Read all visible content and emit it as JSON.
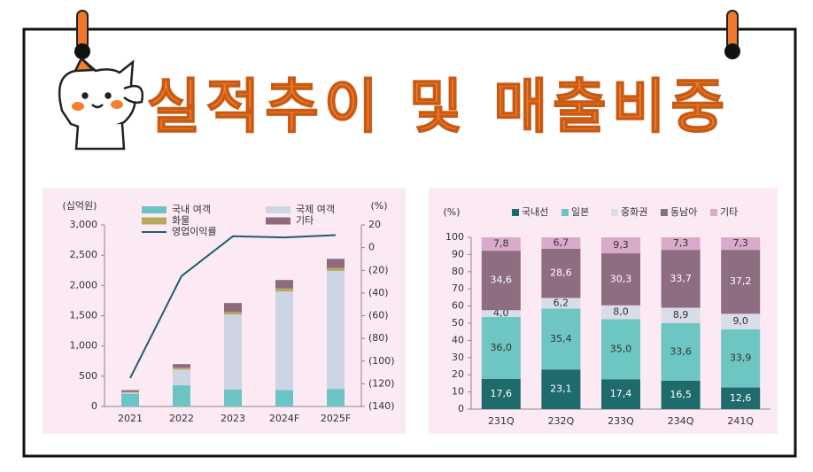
{
  "header": {
    "title": "실적추이 및 매출비중"
  },
  "chart_data": [
    {
      "type": "bar",
      "stacked": true,
      "y_label": "(십억원)",
      "y2_label": "(%)",
      "categories": [
        "2021",
        "2022",
        "2023",
        "2024F",
        "2025F"
      ],
      "series": [
        {
          "name": "국내 여객",
          "color": "#6cc3c3",
          "values": [
            210,
            350,
            280,
            270,
            290
          ]
        },
        {
          "name": "국제 여객",
          "color": "#cdd4e4",
          "values": [
            20,
            260,
            1240,
            1630,
            1950
          ]
        },
        {
          "name": "화물",
          "color": "#b8aa5c",
          "values": [
            10,
            30,
            40,
            50,
            50
          ]
        },
        {
          "name": "기타",
          "color": "#8d6b7c",
          "values": [
            30,
            60,
            150,
            140,
            150
          ]
        },
        {
          "name": "영업이익률",
          "color": "#1f5f6a",
          "type": "line",
          "axis": "y2",
          "values": [
            -115,
            -25,
            10,
            9,
            11
          ]
        }
      ],
      "ylim": [
        0,
        3000
      ],
      "yticks": [
        0,
        500,
        {
          "value": 1000,
          "label": "1,000"
        },
        {
          "value": 1500,
          "label": "1,500"
        },
        {
          "value": 2000,
          "label": "2,000"
        },
        {
          "value": 2500,
          "label": "2,500"
        },
        {
          "value": 3000,
          "label": "3,000"
        }
      ],
      "y2lim": [
        -140,
        20
      ],
      "y2ticks": [
        20,
        0,
        {
          "value": -20,
          "label": "(20)"
        },
        {
          "value": -40,
          "label": "(40)"
        },
        {
          "value": -60,
          "label": "(60)"
        },
        {
          "value": -80,
          "label": "(80)"
        },
        {
          "value": -100,
          "label": "(100)"
        },
        {
          "value": -120,
          "label": "(120)"
        },
        {
          "value": -140,
          "label": "(140)"
        }
      ]
    },
    {
      "type": "bar",
      "stacked": true,
      "y_label": "(%)",
      "categories": [
        "231Q",
        "232Q",
        "233Q",
        "234Q",
        "241Q"
      ],
      "series": [
        {
          "name": "국내선",
          "color": "#1f6b6b",
          "values": [
            17.6,
            23.1,
            17.4,
            16.5,
            12.6
          ],
          "value_labels": [
            "17,6",
            "23,1",
            "17,4",
            "16,5",
            "12,6"
          ]
        },
        {
          "name": "일본",
          "color": "#6dc6c1",
          "values": [
            36.0,
            35.4,
            35.0,
            33.6,
            33.9
          ],
          "value_labels": [
            "36,0",
            "35,4",
            "35,0",
            "33,6",
            "33,9"
          ]
        },
        {
          "name": "중화권",
          "color": "#d9dde9",
          "values": [
            4.0,
            6.2,
            8.0,
            8.9,
            9.0
          ],
          "value_labels": [
            "4,0",
            "6,2",
            "8,0",
            "8,9",
            "9,0"
          ]
        },
        {
          "name": "동남아",
          "color": "#8e6d80",
          "values": [
            34.6,
            28.6,
            30.3,
            33.7,
            37.2
          ],
          "value_labels": [
            "34,6",
            "28,6",
            "30,3",
            "33,7",
            "37,2"
          ]
        },
        {
          "name": "기타",
          "color": "#d9aac9",
          "values": [
            7.8,
            6.7,
            9.3,
            7.3,
            7.3
          ],
          "value_labels": [
            "7,8",
            "6,7",
            "9,3",
            "7,3",
            "7,3"
          ]
        }
      ],
      "ylim": [
        0,
        100
      ],
      "yticks": [
        0,
        10,
        20,
        30,
        40,
        50,
        60,
        70,
        80,
        90,
        100
      ]
    }
  ]
}
